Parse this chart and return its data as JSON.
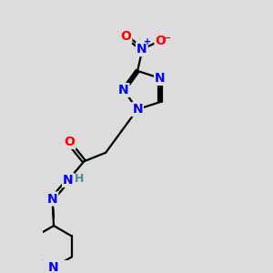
{
  "bg_color": "#dcdcdc",
  "atom_colors": {
    "N": "#0000ff",
    "O": "#ff0000",
    "C": "#000000",
    "H": "#4a9090"
  },
  "bond_color": "#000000",
  "bond_width": 1.6,
  "font_size_atom": 10
}
